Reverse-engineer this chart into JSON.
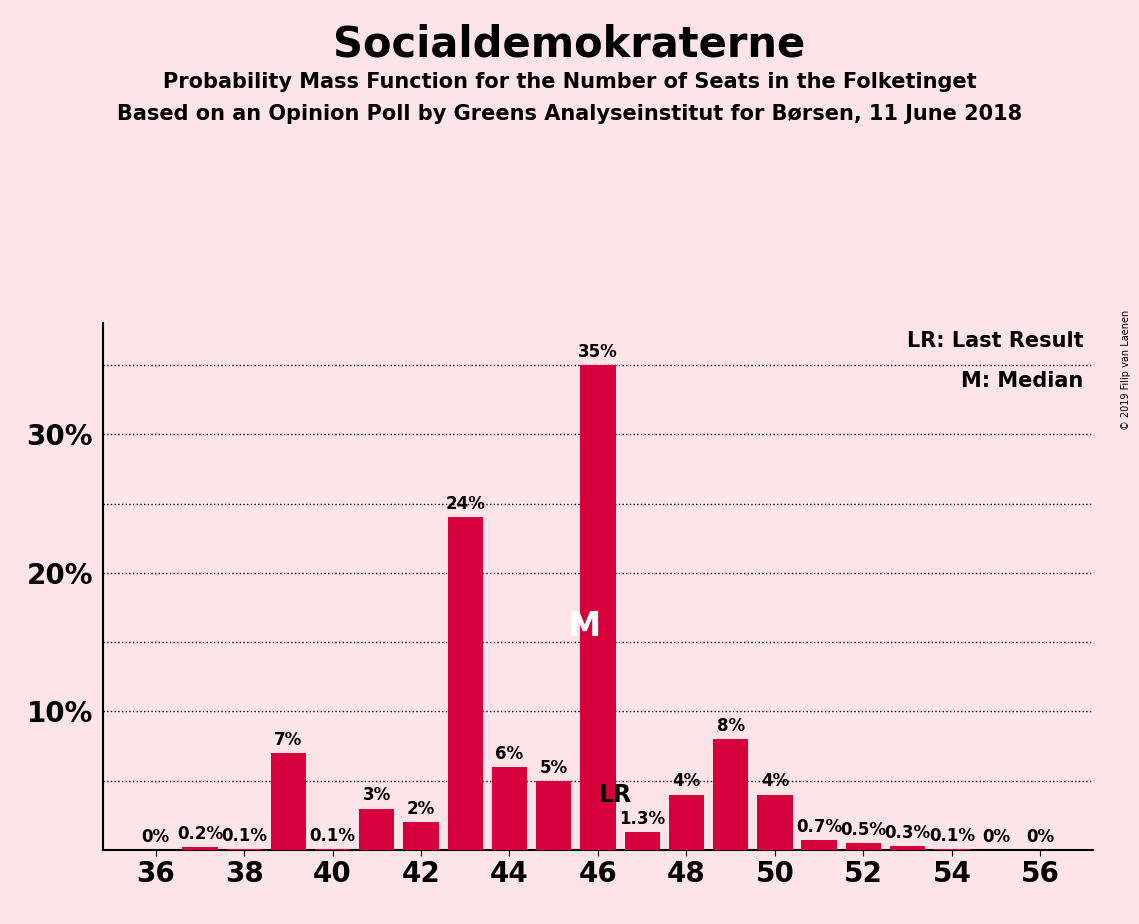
{
  "title": "Socialdemokraterne",
  "subtitle1": "Probability Mass Function for the Number of Seats in the Folketinget",
  "subtitle2": "Based on an Opinion Poll by Greens Analyseinstitut for Børsen, 11 June 2018",
  "copyright": "© 2019 Filip van Laenen",
  "seats": [
    36,
    37,
    38,
    39,
    40,
    41,
    42,
    43,
    44,
    45,
    46,
    47,
    48,
    49,
    50,
    51,
    52,
    53,
    54,
    55,
    56
  ],
  "probabilities": [
    0.0,
    0.2,
    0.1,
    7.0,
    0.1,
    3.0,
    2.0,
    24.0,
    6.0,
    5.0,
    35.0,
    1.3,
    4.0,
    8.0,
    4.0,
    0.7,
    0.5,
    0.3,
    0.1,
    0.0,
    0.0
  ],
  "labels": [
    "0%",
    "0.2%",
    "0.1%",
    "7%",
    "0.1%",
    "3%",
    "2%",
    "24%",
    "6%",
    "5%",
    "35%",
    "1.3%",
    "4%",
    "8%",
    "4%",
    "0.7%",
    "0.5%",
    "0.3%",
    "0.1%",
    "0%",
    "0%"
  ],
  "bar_color": "#d5003c",
  "background_color": "#fce4e8",
  "median_seat": 46,
  "last_result_seat": 47,
  "yticks": [
    5,
    10,
    15,
    20,
    25,
    30,
    35
  ],
  "ytick_labels": [
    "",
    "10%",
    "",
    "20%",
    "",
    "30%",
    ""
  ],
  "dotted_lines": [
    5,
    10,
    15,
    20,
    25,
    30,
    35
  ],
  "ylim": [
    0,
    38
  ],
  "xticks": [
    36,
    38,
    40,
    42,
    44,
    46,
    48,
    50,
    52,
    54,
    56
  ],
  "title_fontsize": 30,
  "subtitle_fontsize": 15,
  "legend_fontsize": 15,
  "bar_label_fontsize": 12,
  "axis_label_fontsize": 20
}
